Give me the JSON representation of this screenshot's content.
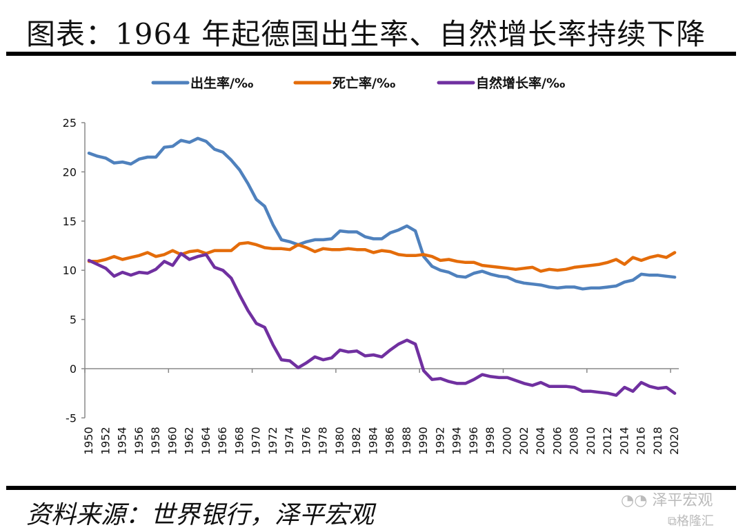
{
  "title": "图表：1964 年起德国出生率、自然增长率持续下降",
  "source": "资料来源：世界银行，泽平宏观",
  "watermark": {
    "line1": "泽平宏观",
    "line2": "格隆汇"
  },
  "chart_data": {
    "type": "line",
    "title": "图表：1964 年起德国出生率、自然增长率持续下降",
    "xlabel": "",
    "ylabel": "",
    "ylim": [
      -5,
      25
    ],
    "yticks": [
      "25",
      "20",
      "15",
      "10",
      "5",
      "0",
      "-5"
    ],
    "ytick_values": [
      25,
      20,
      15,
      10,
      5,
      0,
      -5
    ],
    "xtick_labels": [
      "1950",
      "1952",
      "1954",
      "1956",
      "1958",
      "1960",
      "1962",
      "1964",
      "1966",
      "1968",
      "1970",
      "1972",
      "1974",
      "1976",
      "1978",
      "1980",
      "1982",
      "1984",
      "1986",
      "1988",
      "1990",
      "1992",
      "1994",
      "1996",
      "1998",
      "2000",
      "2002",
      "2004",
      "2006",
      "2008",
      "2010",
      "2012",
      "2014",
      "2016",
      "2018",
      "2020"
    ],
    "legend_position": "top-center",
    "grid": false,
    "x": [
      1950,
      1951,
      1952,
      1953,
      1954,
      1955,
      1956,
      1957,
      1958,
      1959,
      1960,
      1961,
      1962,
      1963,
      1964,
      1965,
      1966,
      1967,
      1968,
      1969,
      1970,
      1971,
      1972,
      1973,
      1974,
      1975,
      1976,
      1977,
      1978,
      1979,
      1980,
      1981,
      1982,
      1983,
      1984,
      1985,
      1986,
      1987,
      1988,
      1989,
      1990,
      1991,
      1992,
      1993,
      1994,
      1995,
      1996,
      1997,
      1998,
      1999,
      2000,
      2001,
      2002,
      2003,
      2004,
      2005,
      2006,
      2007,
      2008,
      2009,
      2010,
      2011,
      2012,
      2013,
      2014,
      2015,
      2016,
      2017,
      2018,
      2019,
      2020
    ],
    "series": [
      {
        "name": "出生率/‰",
        "color": "#4f81bd",
        "values": [
          21.9,
          21.6,
          21.4,
          20.9,
          21.0,
          20.8,
          21.3,
          21.5,
          21.5,
          22.5,
          22.6,
          23.2,
          23.0,
          23.4,
          23.1,
          22.3,
          22.0,
          21.2,
          20.2,
          18.8,
          17.2,
          16.5,
          14.6,
          13.1,
          12.9,
          12.6,
          12.9,
          13.1,
          13.1,
          13.2,
          14.0,
          13.9,
          13.9,
          13.4,
          13.2,
          13.2,
          13.8,
          14.1,
          14.5,
          14.0,
          11.4,
          10.4,
          10.0,
          9.8,
          9.4,
          9.3,
          9.7,
          9.9,
          9.6,
          9.4,
          9.3,
          8.9,
          8.7,
          8.6,
          8.5,
          8.3,
          8.2,
          8.3,
          8.3,
          8.1,
          8.2,
          8.2,
          8.3,
          8.4,
          8.8,
          9.0,
          9.6,
          9.5,
          9.5,
          9.4,
          9.3
        ]
      },
      {
        "name": "死亡率/‰",
        "color": "#e46c0a",
        "values": [
          10.9,
          10.9,
          11.1,
          11.4,
          11.1,
          11.3,
          11.5,
          11.8,
          11.4,
          11.6,
          12.0,
          11.6,
          11.9,
          12.0,
          11.7,
          12.0,
          12.0,
          12.0,
          12.7,
          12.8,
          12.6,
          12.3,
          12.2,
          12.2,
          12.1,
          12.6,
          12.3,
          11.9,
          12.2,
          12.1,
          12.1,
          12.2,
          12.1,
          12.1,
          11.8,
          12.0,
          11.9,
          11.6,
          11.5,
          11.5,
          11.6,
          11.4,
          11.0,
          11.1,
          10.9,
          10.8,
          10.8,
          10.5,
          10.4,
          10.3,
          10.2,
          10.1,
          10.2,
          10.3,
          9.9,
          10.1,
          10.0,
          10.1,
          10.3,
          10.4,
          10.5,
          10.6,
          10.8,
          11.1,
          10.6,
          11.3,
          11.0,
          11.3,
          11.5,
          11.3,
          11.8
        ]
      },
      {
        "name": "自然增长率/‰",
        "color": "#7030a0",
        "values": [
          11.0,
          10.6,
          10.2,
          9.4,
          9.8,
          9.5,
          9.8,
          9.7,
          10.1,
          10.9,
          10.5,
          11.7,
          11.1,
          11.4,
          11.6,
          10.3,
          10.0,
          9.2,
          7.5,
          5.9,
          4.6,
          4.2,
          2.4,
          0.9,
          0.8,
          0.1,
          0.6,
          1.2,
          0.9,
          1.1,
          1.9,
          1.7,
          1.8,
          1.3,
          1.4,
          1.2,
          1.9,
          2.5,
          2.9,
          2.5,
          -0.2,
          -1.1,
          -1.0,
          -1.3,
          -1.5,
          -1.5,
          -1.1,
          -0.6,
          -0.8,
          -0.9,
          -0.9,
          -1.2,
          -1.5,
          -1.7,
          -1.4,
          -1.8,
          -1.8,
          -1.8,
          -1.9,
          -2.3,
          -2.3,
          -2.4,
          -2.5,
          -2.7,
          -1.9,
          -2.3,
          -1.4,
          -1.8,
          -2.0,
          -1.9,
          -2.5
        ]
      }
    ]
  }
}
